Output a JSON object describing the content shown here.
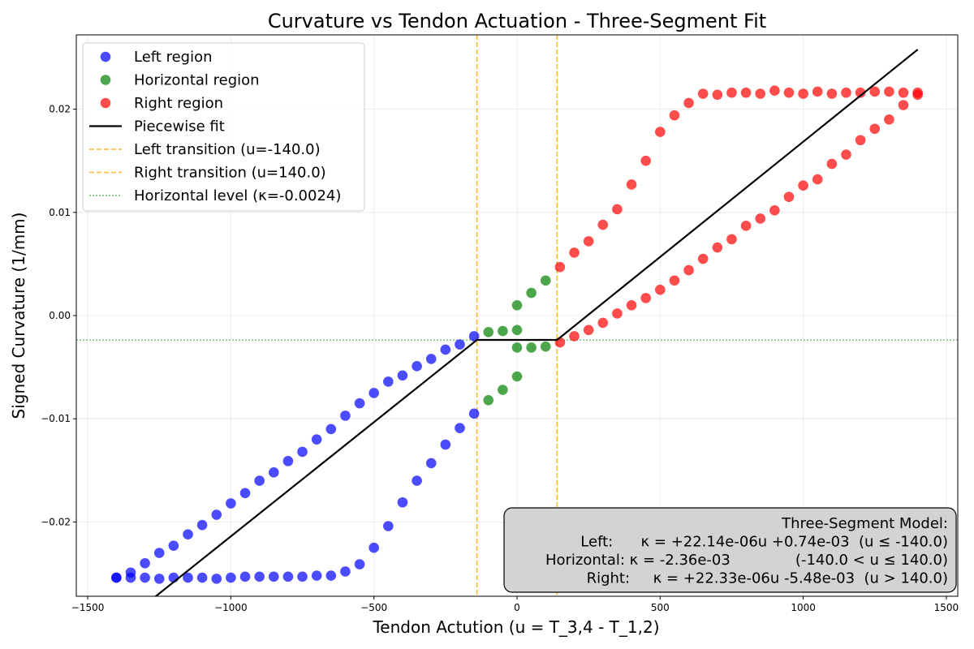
{
  "chart_data": {
    "type": "scatter",
    "title": "Curvature vs Tendon Actuation - Three-Segment Fit",
    "xlabel": "Tendon Actution (u = T_3,4 - T_1,2)",
    "ylabel": "Signed Curvature (1/mm)",
    "xlim": [
      -1540,
      1540
    ],
    "ylim": [
      -0.0272,
      0.0272
    ],
    "xticks": [
      -1500,
      -1000,
      -500,
      0,
      500,
      1000,
      1500
    ],
    "xtick_labels": [
      "−1500",
      "−1000",
      "−500",
      "0",
      "500",
      "1000",
      "1500"
    ],
    "yticks": [
      -0.02,
      -0.01,
      0.0,
      0.01,
      0.02
    ],
    "ytick_labels": [
      "−0.02",
      "−0.01",
      "0.00",
      "0.01",
      "0.02"
    ],
    "grid": true,
    "legend_position": "top-left",
    "series": [
      {
        "name": "Left region",
        "color": "#0000ff",
        "points": [
          [
            -1400,
            -0.0254
          ],
          [
            -1350,
            -0.0249
          ],
          [
            -1300,
            -0.024
          ],
          [
            -1250,
            -0.023
          ],
          [
            -1200,
            -0.0223
          ],
          [
            -1150,
            -0.0212
          ],
          [
            -1100,
            -0.0203
          ],
          [
            -1050,
            -0.0193
          ],
          [
            -1000,
            -0.0182
          ],
          [
            -950,
            -0.0172
          ],
          [
            -900,
            -0.016
          ],
          [
            -850,
            -0.0152
          ],
          [
            -800,
            -0.0141
          ],
          [
            -750,
            -0.0132
          ],
          [
            -700,
            -0.012
          ],
          [
            -650,
            -0.011
          ],
          [
            -600,
            -0.0097
          ],
          [
            -550,
            -0.0085
          ],
          [
            -500,
            -0.0075
          ],
          [
            -450,
            -0.0064
          ],
          [
            -400,
            -0.0058
          ],
          [
            -350,
            -0.0049
          ],
          [
            -300,
            -0.0042
          ],
          [
            -250,
            -0.0033
          ],
          [
            -200,
            -0.0028
          ],
          [
            -150,
            -0.002
          ],
          [
            -1400,
            -0.0254
          ],
          [
            -1350,
            -0.0254
          ],
          [
            -1300,
            -0.0254
          ],
          [
            -1250,
            -0.0255
          ],
          [
            -1200,
            -0.0254
          ],
          [
            -1150,
            -0.0254
          ],
          [
            -1100,
            -0.0254
          ],
          [
            -1050,
            -0.0255
          ],
          [
            -1000,
            -0.0254
          ],
          [
            -950,
            -0.0253
          ],
          [
            -900,
            -0.0253
          ],
          [
            -850,
            -0.0253
          ],
          [
            -800,
            -0.0253
          ],
          [
            -750,
            -0.0253
          ],
          [
            -700,
            -0.0252
          ],
          [
            -650,
            -0.0252
          ],
          [
            -600,
            -0.0248
          ],
          [
            -550,
            -0.0241
          ],
          [
            -500,
            -0.0225
          ],
          [
            -450,
            -0.0204
          ],
          [
            -400,
            -0.0181
          ],
          [
            -350,
            -0.016
          ],
          [
            -300,
            -0.0143
          ],
          [
            -250,
            -0.0125
          ],
          [
            -200,
            -0.0109
          ],
          [
            -150,
            -0.0095
          ]
        ]
      },
      {
        "name": "Horizontal region",
        "color": "#008000",
        "points": [
          [
            -100,
            -0.0016
          ],
          [
            -50,
            -0.0015
          ],
          [
            0,
            -0.0014
          ],
          [
            0,
            0.001
          ],
          [
            50,
            0.0022
          ],
          [
            100,
            0.0034
          ],
          [
            0,
            -0.0031
          ],
          [
            50,
            -0.0031
          ],
          [
            100,
            -0.003
          ],
          [
            0,
            -0.0059
          ],
          [
            -50,
            -0.0072
          ],
          [
            -100,
            -0.0082
          ]
        ]
      },
      {
        "name": "Right region",
        "color": "#ff0000",
        "points": [
          [
            150,
            0.0047
          ],
          [
            200,
            0.0061
          ],
          [
            250,
            0.0072
          ],
          [
            300,
            0.0088
          ],
          [
            350,
            0.0103
          ],
          [
            400,
            0.0127
          ],
          [
            450,
            0.015
          ],
          [
            500,
            0.0178
          ],
          [
            550,
            0.0194
          ],
          [
            600,
            0.0206
          ],
          [
            650,
            0.0215
          ],
          [
            700,
            0.0214
          ],
          [
            750,
            0.0216
          ],
          [
            800,
            0.0216
          ],
          [
            850,
            0.0215
          ],
          [
            900,
            0.0218
          ],
          [
            950,
            0.0216
          ],
          [
            1000,
            0.0215
          ],
          [
            1050,
            0.0217
          ],
          [
            1100,
            0.0215
          ],
          [
            1150,
            0.0216
          ],
          [
            1200,
            0.0216
          ],
          [
            1250,
            0.0217
          ],
          [
            1300,
            0.0217
          ],
          [
            1350,
            0.0216
          ],
          [
            1400,
            0.0216
          ],
          [
            150,
            -0.0026
          ],
          [
            200,
            -0.002
          ],
          [
            250,
            -0.0014
          ],
          [
            300,
            -0.0007
          ],
          [
            350,
            0.0002
          ],
          [
            400,
            0.001
          ],
          [
            450,
            0.0017
          ],
          [
            500,
            0.0025
          ],
          [
            550,
            0.0034
          ],
          [
            600,
            0.0044
          ],
          [
            650,
            0.0055
          ],
          [
            700,
            0.0066
          ],
          [
            750,
            0.0074
          ],
          [
            800,
            0.0087
          ],
          [
            850,
            0.0094
          ],
          [
            900,
            0.0102
          ],
          [
            950,
            0.0115
          ],
          [
            1000,
            0.0126
          ],
          [
            1050,
            0.0132
          ],
          [
            1100,
            0.0147
          ],
          [
            1150,
            0.0156
          ],
          [
            1200,
            0.017
          ],
          [
            1250,
            0.0181
          ],
          [
            1300,
            0.019
          ],
          [
            1350,
            0.0204
          ],
          [
            1400,
            0.0214
          ]
        ]
      }
    ],
    "fit_line": {
      "name": "Piecewise fit",
      "color": "#000000",
      "points": [
        [
          -1400,
          -0.03025
        ],
        [
          -140,
          -0.00236
        ],
        [
          140,
          -0.00236
        ],
        [
          1400,
          0.02578
        ]
      ]
    },
    "vlines": [
      {
        "name": "Left transition (u=-140.0)",
        "x": -140,
        "color": "#ffa500"
      },
      {
        "name": "Right transition (u=140.0)",
        "x": 140,
        "color": "#ffa500"
      }
    ],
    "hlines": [
      {
        "name": "Horizontal level (κ=-0.0024)",
        "y": -0.00236,
        "color": "#2ca02c"
      }
    ],
    "annotation": {
      "lines": [
        "Three-Segment Model:",
        "Left:      κ = +22.14e-06u +0.74e-03  (u ≤ -140.0)",
        "Horizontal: κ = -2.36e-03              (-140.0 < u ≤ 140.0)",
        "Right:     κ = +22.33e-06u -5.48e-03  (u > 140.0)"
      ],
      "position": "bottom-right"
    }
  }
}
